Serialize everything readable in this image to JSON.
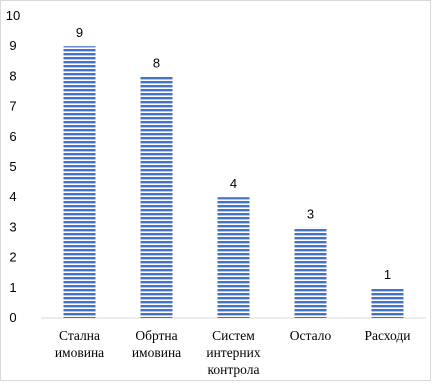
{
  "chart_data": {
    "type": "bar",
    "categories": [
      [
        "Стална",
        "имовина"
      ],
      [
        "Обртна",
        "имовина"
      ],
      [
        "Систем",
        "интерних",
        "контрола"
      ],
      [
        "Остало"
      ],
      [
        "Расходи"
      ]
    ],
    "values": [
      9,
      8,
      4,
      3,
      1
    ],
    "data_labels": [
      "9",
      "8",
      "4",
      "3",
      "1"
    ],
    "y_ticks": [
      "0",
      "1",
      "2",
      "3",
      "4",
      "5",
      "6",
      "7",
      "8",
      "9",
      "10"
    ],
    "ylim": [
      0,
      10
    ],
    "grid": false,
    "legend": "none",
    "bar_color": "#4472c4",
    "bar_stripe_color": "#ffffff",
    "title": "",
    "xlabel": "",
    "ylabel": ""
  }
}
